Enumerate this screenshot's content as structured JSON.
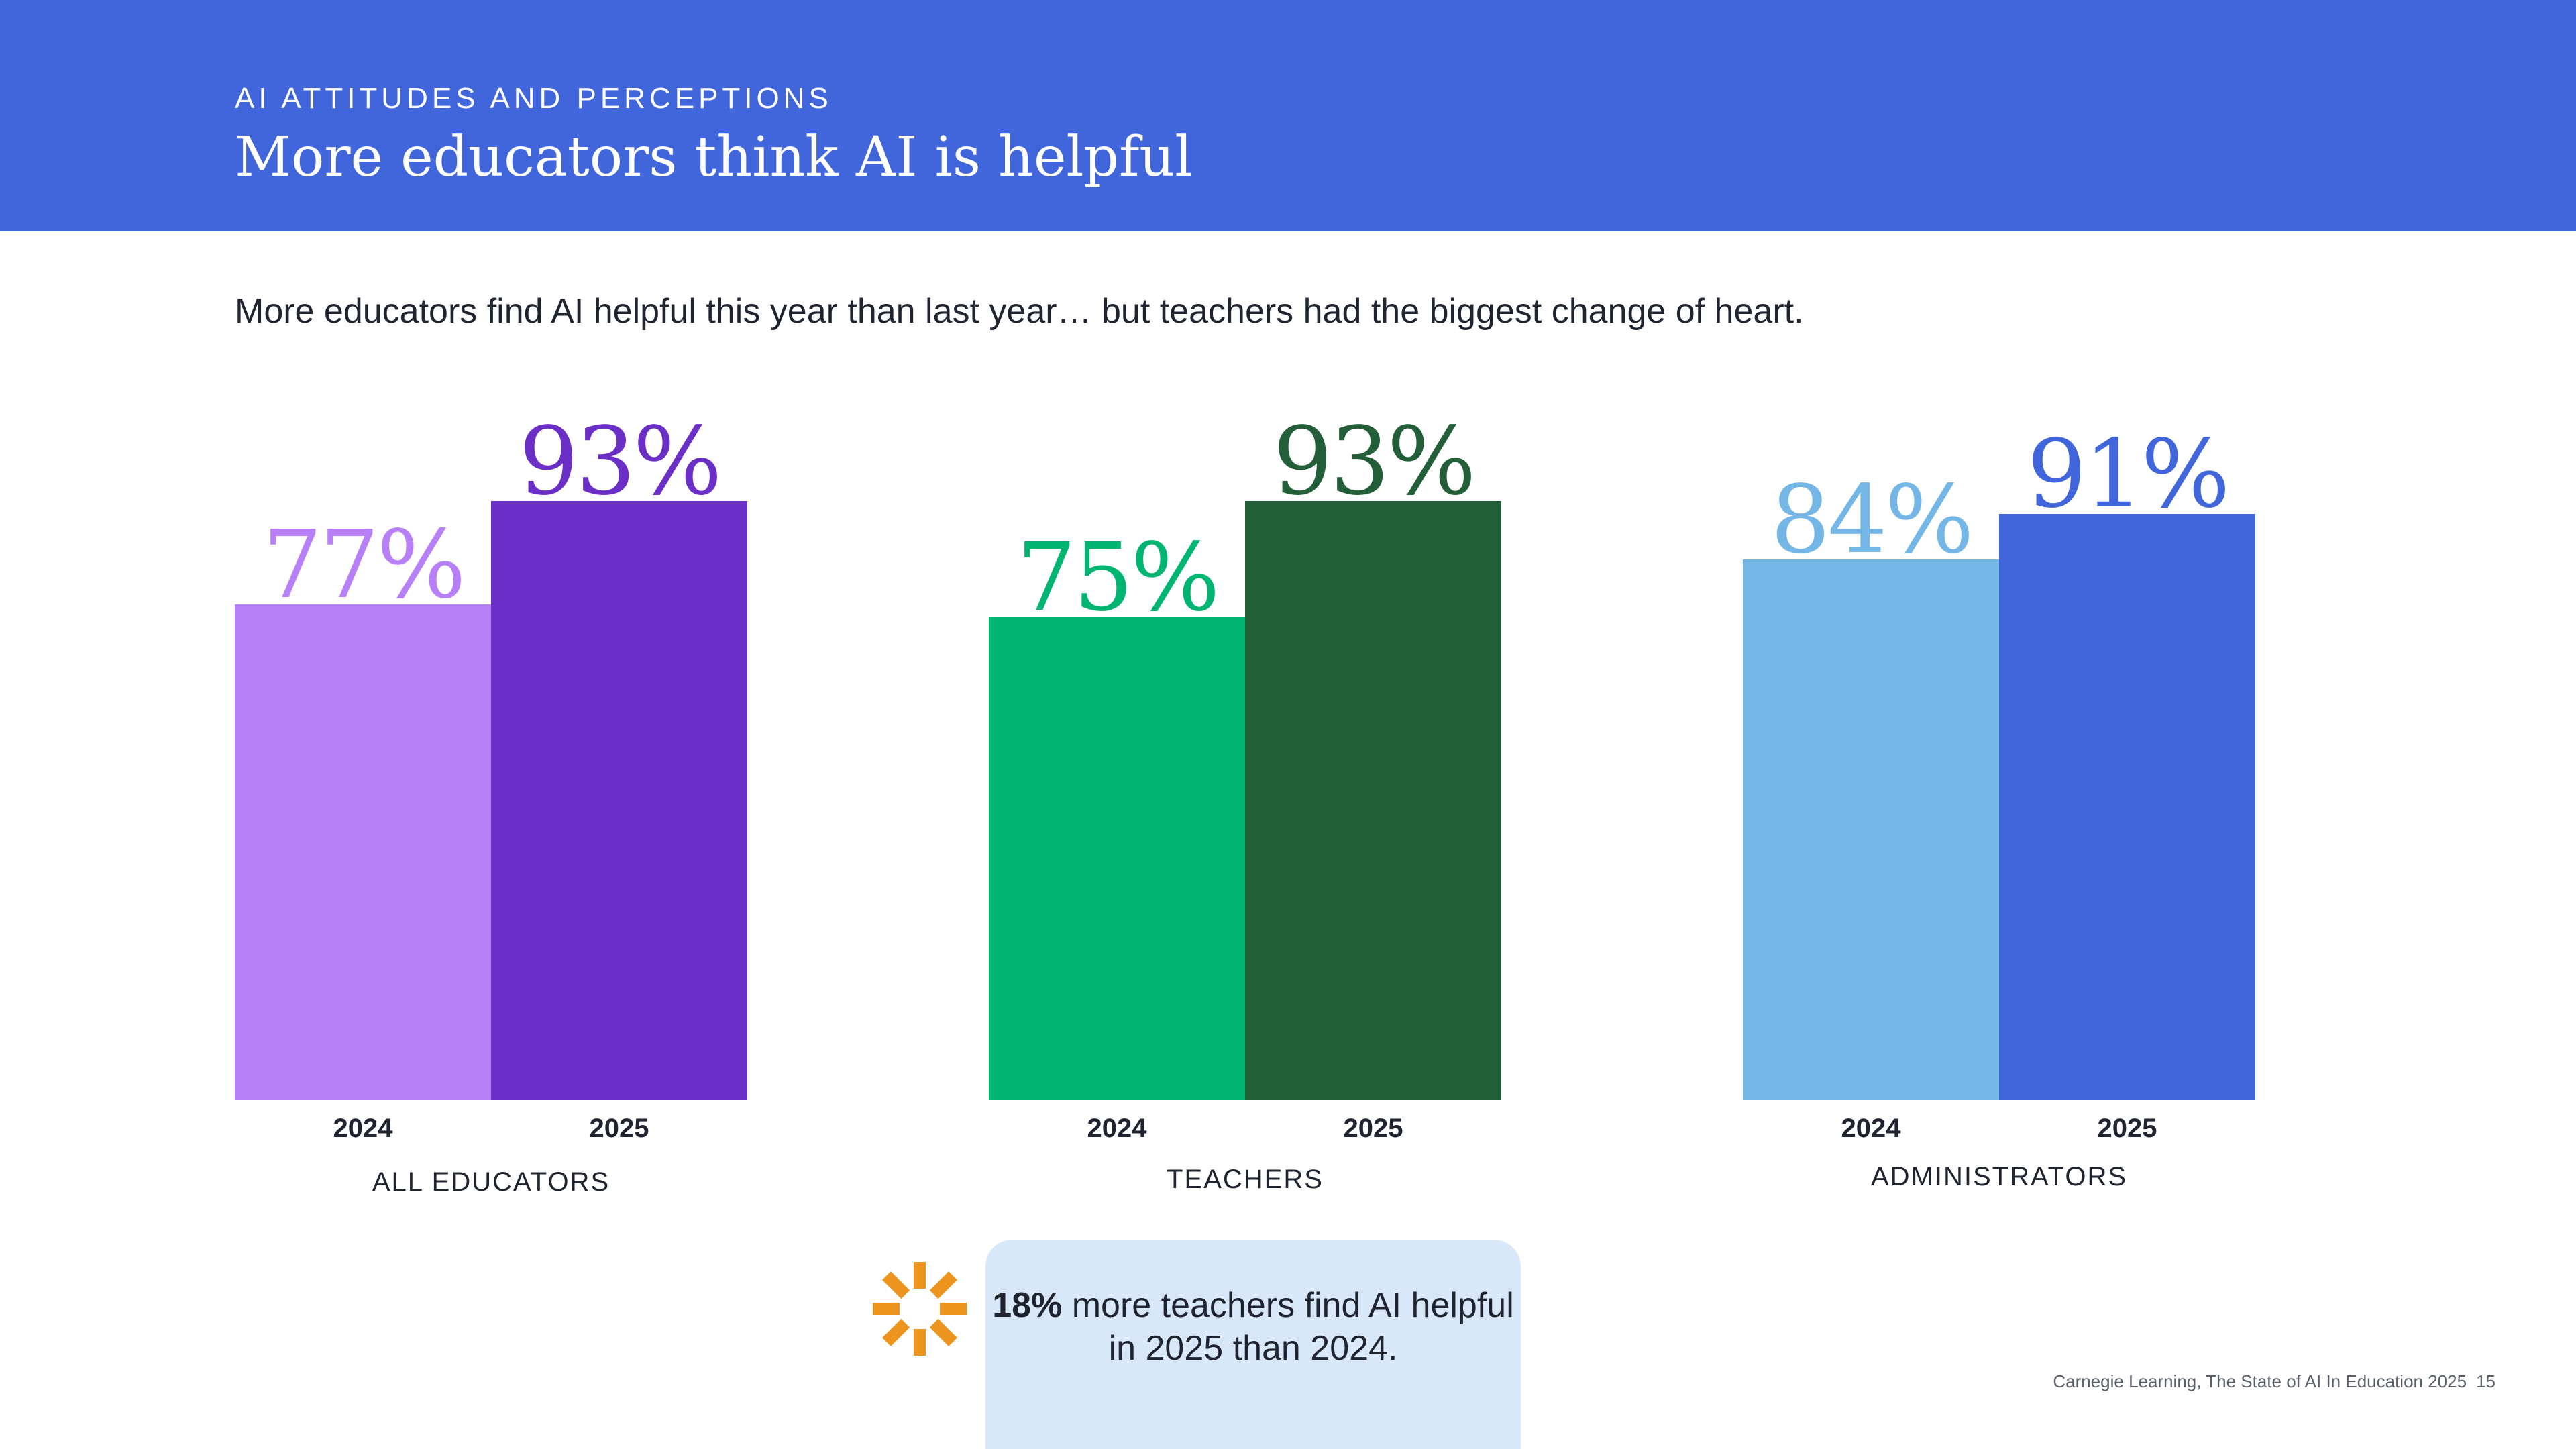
{
  "header": {
    "eyebrow": "AI ATTITUDES AND PERCEPTIONS",
    "title": "More educators think AI is helpful"
  },
  "subtitle": "More educators find AI helpful this year than last year… but teachers had the biggest change of heart.",
  "chart_data": [
    {
      "type": "bar",
      "group_label": "ALL EDUCATORS",
      "categories": [
        "2024",
        "2025"
      ],
      "values": [
        77,
        93
      ],
      "value_labels": [
        "77%",
        "93%"
      ],
      "colors": [
        "#b77ff8",
        "#6b2fc7"
      ],
      "label_colors": [
        "#b77ff8",
        "#6b2fc7"
      ],
      "ylim": [
        0,
        100
      ]
    },
    {
      "type": "bar",
      "group_label": "TEACHERS",
      "categories": [
        "2024",
        "2025"
      ],
      "values": [
        75,
        93
      ],
      "value_labels": [
        "75%",
        "93%"
      ],
      "colors": [
        "#00b571",
        "#225e37"
      ],
      "label_colors": [
        "#00b571",
        "#225e37"
      ],
      "ylim": [
        0,
        100
      ]
    },
    {
      "type": "bar",
      "group_label": "ADMINISTRATORS",
      "categories": [
        "2024",
        "2025"
      ],
      "values": [
        84,
        91
      ],
      "value_labels": [
        "84%",
        "91%"
      ],
      "colors": [
        "#74b6e6",
        "#4165da"
      ],
      "label_colors": [
        "#74b6e6",
        "#4165da"
      ],
      "ylim": [
        0,
        100
      ]
    }
  ],
  "callout": {
    "icon": "burst-icon",
    "icon_color": "#ec941d",
    "bold": "18%",
    "text": " more teachers find AI helpful in 2025 than 2024."
  },
  "footer": {
    "source": "Carnegie Learning, The State of AI In Education 2025",
    "page": "15"
  }
}
